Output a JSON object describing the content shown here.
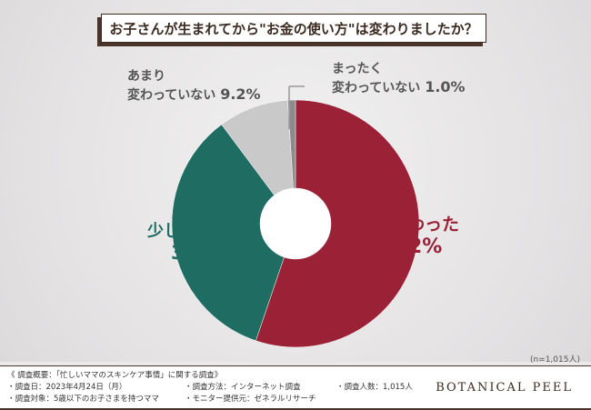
{
  "title": "お子さんが生まれてから\"お金の使い方\"は変わりましたか？",
  "chart_data": {
    "type": "pie",
    "title": "お子さんが生まれてから\"お金の使い方\"は変わりましたか？",
    "slices": [
      {
        "label": "かなり変わった",
        "value": 55.2,
        "display": "55.2%",
        "color": "#9b2236"
      },
      {
        "label": "少し変わった",
        "value": 34.6,
        "display": "34.6%",
        "color": "#1e6c62"
      },
      {
        "label": "あまり変わっていない",
        "value": 9.2,
        "display": "9.2%",
        "color": "#c9c9c9"
      },
      {
        "label": "まったく変わっていない",
        "value": 1.0,
        "display": "1.0%",
        "color": "#8c8c8c"
      }
    ],
    "donut": true,
    "note": "(n=1,015人)"
  },
  "footer": {
    "summary": "《 調査概要：「忙しいママのスキンケア事情」に関する調査》",
    "date": "・調査日：2023年4月24日（月）",
    "target": "・調査対象：5歳以下のお子さまを持つママ",
    "method": "・調査方法：インターネット調査",
    "provider": "・モニター提供元：ゼネラルリサーチ",
    "count": "・調査人数：1,015人",
    "brand": "BOTANICAL PEEL"
  }
}
